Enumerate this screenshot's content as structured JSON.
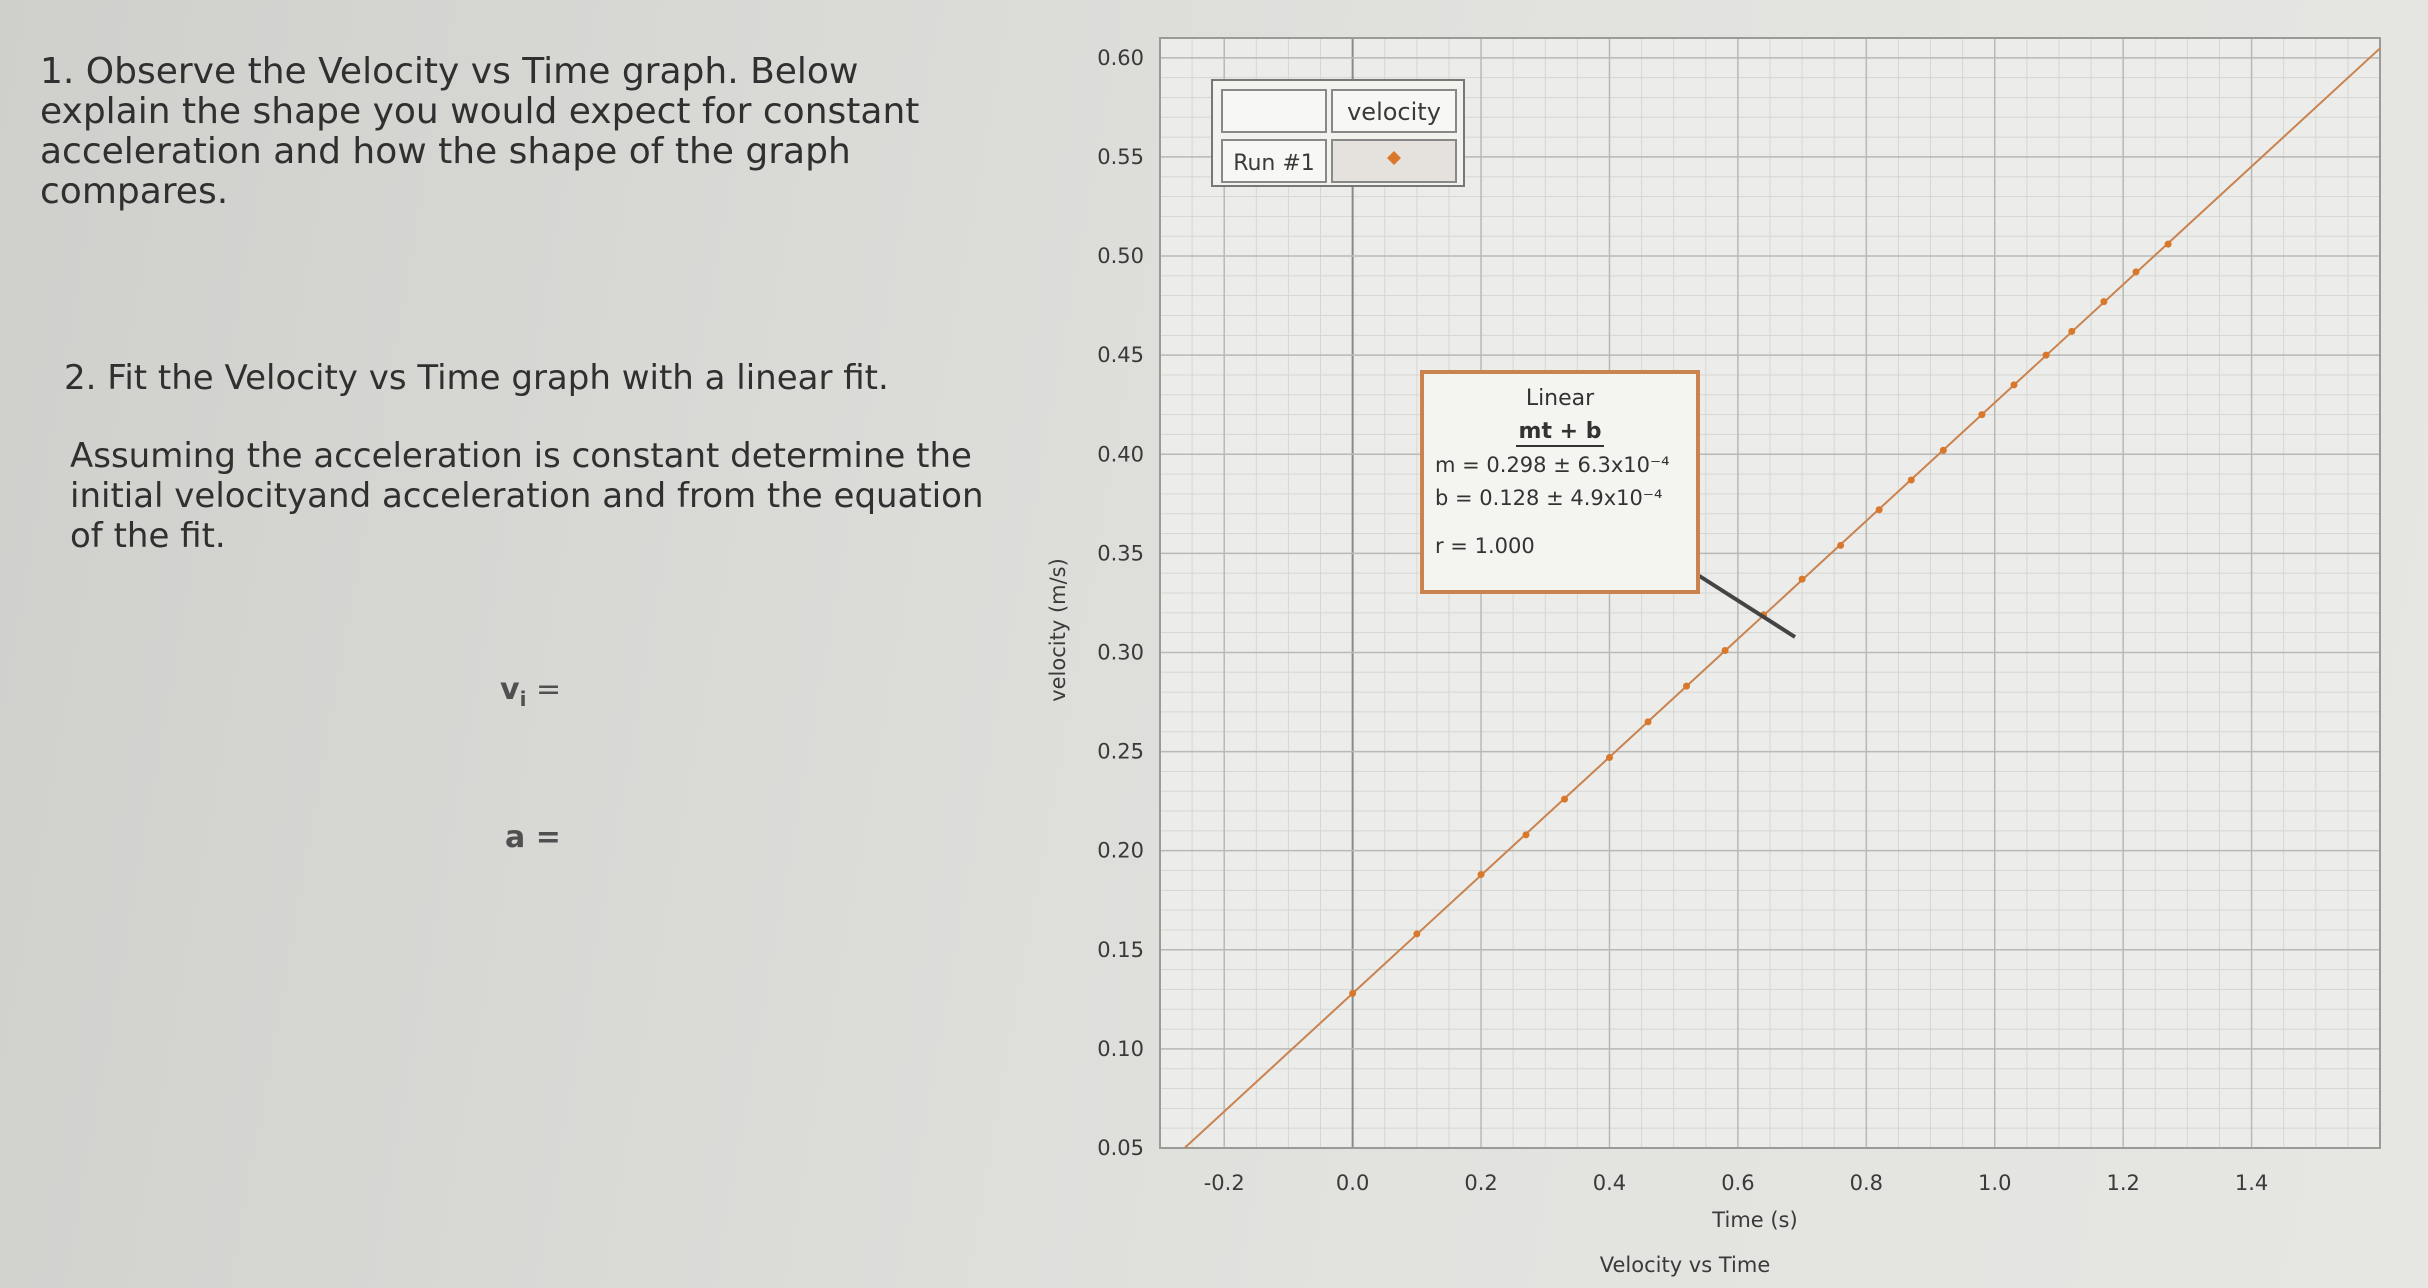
{
  "questions": {
    "q1": "1. Observe the Velocity vs Time graph.  Below explain the shape you would expect for constant acceleration and how the shape of the graph compares.",
    "q2_title": "2. Fit the Velocity vs Time graph with a linear fit.",
    "q2_body": "Assuming the acceleration is constant determine the initial velocityand acceleration and from the equation of the fit.",
    "vi_label": "v",
    "vi_sub": "i",
    "vi_eq": " =",
    "a_label": "a =",
    "answer_vi": "",
    "answer_a": ""
  },
  "legend": {
    "header": "velocity",
    "run": "Run #1",
    "marker_color": "#d9772b"
  },
  "fit_box": {
    "title": "Linear",
    "equation": "mt + b",
    "m_line": "m  = 0.298 ± 6.3x10⁻⁴",
    "b_line": "b   = 0.128 ± 4.9x10⁻⁴",
    "r_line": "r = 1.000"
  },
  "chart_data": {
    "type": "scatter",
    "title": "Velocity vs Time",
    "xlabel": "Time (s)",
    "ylabel": "velocity (m/s)",
    "xlim": [
      -0.3,
      1.6
    ],
    "ylim": [
      0.05,
      0.61
    ],
    "x_ticks": [
      "-0.2",
      "0.0",
      "0.2",
      "0.4",
      "0.6",
      "0.8",
      "1.0",
      "1.2",
      "1.4"
    ],
    "y_ticks": [
      "0.05",
      "0.10",
      "0.15",
      "0.20",
      "0.25",
      "0.30",
      "0.35",
      "0.40",
      "0.45",
      "0.50",
      "0.55",
      "0.60"
    ],
    "grid": true,
    "legend_position": "top-left",
    "series": [
      {
        "name": "velocity",
        "color": "#d9772b",
        "x": [
          0.0,
          0.1,
          0.2,
          0.27,
          0.33,
          0.4,
          0.46,
          0.52,
          0.58,
          0.64,
          0.7,
          0.76,
          0.82,
          0.87,
          0.92,
          0.98,
          1.03,
          1.08,
          1.12,
          1.17,
          1.22,
          1.27
        ],
        "y": [
          0.128,
          0.158,
          0.188,
          0.208,
          0.226,
          0.247,
          0.265,
          0.283,
          0.301,
          0.319,
          0.337,
          0.354,
          0.372,
          0.387,
          0.402,
          0.42,
          0.435,
          0.45,
          0.462,
          0.477,
          0.492,
          0.506
        ]
      }
    ],
    "fit": {
      "type": "linear",
      "m": 0.298,
      "b": 0.128,
      "color": "#c9834e"
    }
  }
}
